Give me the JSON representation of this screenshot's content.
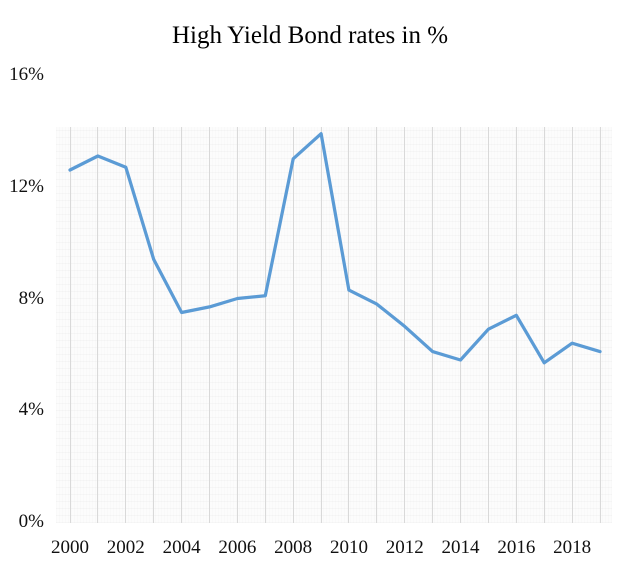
{
  "title": "High Yield Bond rates in %",
  "chart_data": {
    "type": "line",
    "title": "High Yield Bond rates in %",
    "x": [
      2000,
      2001,
      2002,
      2003,
      2004,
      2005,
      2006,
      2007,
      2008,
      2009,
      2010,
      2011,
      2012,
      2013,
      2014,
      2015,
      2016,
      2017,
      2018,
      2019
    ],
    "series": [
      {
        "name": "High Yield Bond rate",
        "values": [
          12.6,
          13.1,
          12.7,
          9.4,
          7.5,
          7.7,
          8.0,
          8.1,
          13.0,
          13.9,
          8.3,
          7.8,
          7.0,
          6.1,
          5.8,
          6.9,
          7.4,
          5.7,
          6.4,
          6.1
        ]
      }
    ],
    "xlabel": "",
    "ylabel": "",
    "ylim": [
      0,
      16
    ],
    "yticks": [
      0,
      4,
      8,
      12,
      16
    ],
    "ytick_labels": [
      "0%",
      "4%",
      "8%",
      "12%",
      "16%"
    ],
    "xticks": [
      2000,
      2002,
      2004,
      2006,
      2008,
      2010,
      2012,
      2014,
      2016,
      2018
    ],
    "grid": "vertical gridline per year, no horizontal gridlines",
    "legend": "none",
    "line_color": "#5b9bd5",
    "gridline_color": "#d9d9d9",
    "plot_background": "#fcfcfc",
    "text_color": "#111111"
  }
}
